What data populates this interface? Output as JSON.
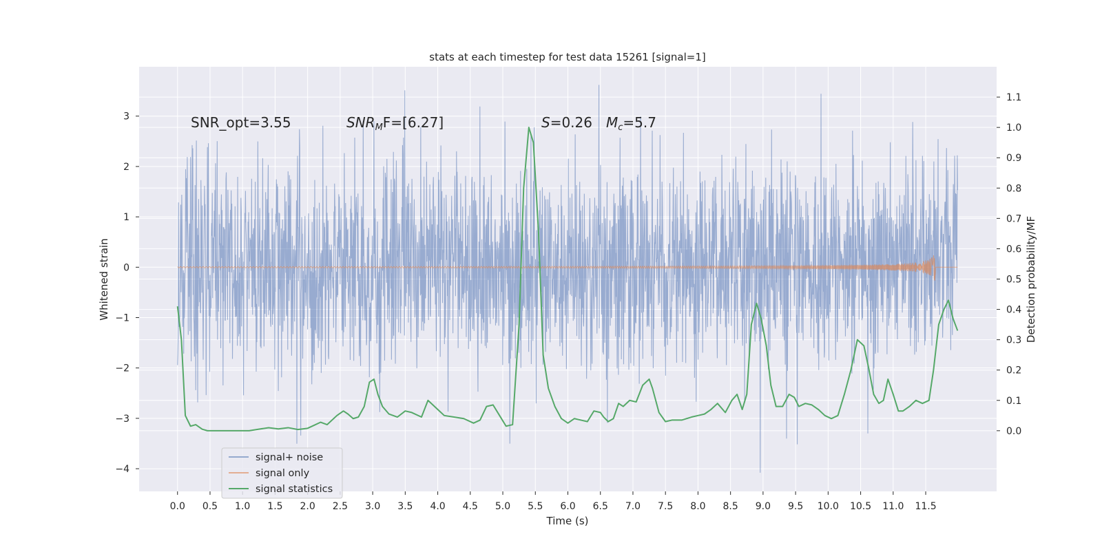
{
  "chart_data": {
    "type": "line",
    "title": "stats at each timestep for test data 15261 [signal=1]",
    "xlabel": "Time (s)",
    "ylabel": "Whitened strain",
    "ylabel_right": "Detection probability/MF",
    "xlim": [
      -0.59,
      12.59
    ],
    "ylim": [
      -4.45,
      3.98
    ],
    "ylim_right": [
      -0.2,
      1.2
    ],
    "x_ticks": [
      0.0,
      0.5,
      1.0,
      1.5,
      2.0,
      2.5,
      3.0,
      3.5,
      4.0,
      4.5,
      5.0,
      5.5,
      6.0,
      6.5,
      7.0,
      7.5,
      8.0,
      8.5,
      9.0,
      9.5,
      10.0,
      10.5,
      11.0,
      11.5
    ],
    "x_tick_labels": [
      "0.0",
      "0.5",
      "1.0",
      "1.5",
      "2.0",
      "2.5",
      "3.0",
      "3.5",
      "4.0",
      "4.5",
      "5.0",
      "5.5",
      "6.0",
      "6.5",
      "7.0",
      "7.5",
      "8.0",
      "8.5",
      "9.0",
      "9.5",
      "10.0",
      "10.5",
      "11.0",
      "11.5"
    ],
    "y_ticks": [
      -4,
      -3,
      -2,
      -1,
      0,
      1,
      2,
      3
    ],
    "y_tick_labels": [
      "−4",
      "−3",
      "−2",
      "−1",
      "0",
      "1",
      "2",
      "3"
    ],
    "y_ticks_right": [
      0.0,
      0.1,
      0.2,
      0.3,
      0.4,
      0.5,
      0.6,
      0.7,
      0.8,
      0.9,
      1.0,
      1.1
    ],
    "y_tick_labels_right": [
      "0.0",
      "0.1",
      "0.2",
      "0.3",
      "0.4",
      "0.5",
      "0.6",
      "0.7",
      "0.8",
      "0.9",
      "1.0",
      "1.1"
    ],
    "grid": true,
    "legend_position": "lower-left",
    "annotations": {
      "snr_opt": "SNR_opt=3.55",
      "snr_mf_main": "SNR",
      "snr_mf_sub": "M",
      "snr_mf_rest": "F=[6.27]",
      "s_symbol": "S",
      "s_rest": "=0.26",
      "mc_main": "M",
      "mc_sub": "c",
      "mc_rest": "=5.7"
    },
    "series": [
      {
        "name": "signal+ noise",
        "color": "#4c72b0",
        "kind": "noise",
        "x_range": [
          0.0,
          11.99
        ],
        "sigma": 1.0,
        "peak_max": 3.62,
        "peak_min": -4.08
      },
      {
        "name": "signal only",
        "color": "#dd8452",
        "kind": "chirp",
        "x_range": [
          0.0,
          11.99
        ],
        "amplitude_end": 0.35,
        "merger_time": 11.65
      },
      {
        "name": "signal statistics",
        "color": "#55a868",
        "kind": "line",
        "x": [
          0.0,
          0.06,
          0.12,
          0.2,
          0.28,
          0.38,
          0.46,
          0.55,
          0.65,
          0.75,
          0.9,
          1.0,
          1.1,
          1.25,
          1.4,
          1.55,
          1.7,
          1.85,
          2.0,
          2.1,
          2.2,
          2.3,
          2.45,
          2.55,
          2.62,
          2.7,
          2.78,
          2.87,
          2.95,
          3.02,
          3.08,
          3.15,
          3.25,
          3.38,
          3.5,
          3.6,
          3.75,
          3.85,
          4.0,
          4.1,
          4.25,
          4.4,
          4.55,
          4.65,
          4.75,
          4.85,
          4.95,
          5.05,
          5.15,
          5.25,
          5.32,
          5.4,
          5.47,
          5.55,
          5.62,
          5.7,
          5.8,
          5.9,
          6.0,
          6.1,
          6.2,
          6.3,
          6.4,
          6.5,
          6.55,
          6.62,
          6.7,
          6.78,
          6.85,
          6.95,
          7.05,
          7.15,
          7.25,
          7.3,
          7.4,
          7.5,
          7.6,
          7.75,
          7.9,
          8.0,
          8.1,
          8.2,
          8.3,
          8.42,
          8.52,
          8.6,
          8.68,
          8.75,
          8.82,
          8.9,
          8.97,
          9.05,
          9.12,
          9.2,
          9.3,
          9.4,
          9.48,
          9.55,
          9.65,
          9.75,
          9.85,
          9.95,
          10.05,
          10.15,
          10.25,
          10.35,
          10.45,
          10.55,
          10.62,
          10.7,
          10.78,
          10.85,
          10.92,
          11.0,
          11.08,
          11.15,
          11.25,
          11.35,
          11.45,
          11.55,
          11.62,
          11.7,
          11.78,
          11.85,
          11.92,
          11.99
        ],
        "values": [
          0.41,
          0.3,
          0.05,
          0.015,
          0.02,
          0.005,
          0.0,
          0.0,
          0.0,
          0.0,
          0.0,
          0.0,
          0.0,
          0.005,
          0.01,
          0.006,
          0.01,
          0.004,
          0.008,
          0.018,
          0.028,
          0.02,
          0.05,
          0.065,
          0.055,
          0.04,
          0.045,
          0.08,
          0.16,
          0.17,
          0.12,
          0.08,
          0.055,
          0.045,
          0.065,
          0.06,
          0.045,
          0.1,
          0.07,
          0.05,
          0.045,
          0.04,
          0.025,
          0.035,
          0.08,
          0.085,
          0.05,
          0.015,
          0.02,
          0.35,
          0.8,
          1.0,
          0.95,
          0.65,
          0.25,
          0.14,
          0.08,
          0.04,
          0.025,
          0.04,
          0.035,
          0.03,
          0.065,
          0.06,
          0.045,
          0.03,
          0.04,
          0.09,
          0.08,
          0.1,
          0.095,
          0.15,
          0.17,
          0.14,
          0.06,
          0.03,
          0.035,
          0.035,
          0.045,
          0.05,
          0.055,
          0.07,
          0.09,
          0.06,
          0.1,
          0.12,
          0.07,
          0.12,
          0.35,
          0.42,
          0.37,
          0.28,
          0.15,
          0.08,
          0.08,
          0.12,
          0.11,
          0.08,
          0.09,
          0.085,
          0.07,
          0.05,
          0.04,
          0.05,
          0.12,
          0.2,
          0.3,
          0.28,
          0.21,
          0.12,
          0.09,
          0.1,
          0.17,
          0.12,
          0.065,
          0.065,
          0.08,
          0.1,
          0.09,
          0.1,
          0.2,
          0.35,
          0.4,
          0.43,
          0.37,
          0.33
        ]
      }
    ]
  }
}
